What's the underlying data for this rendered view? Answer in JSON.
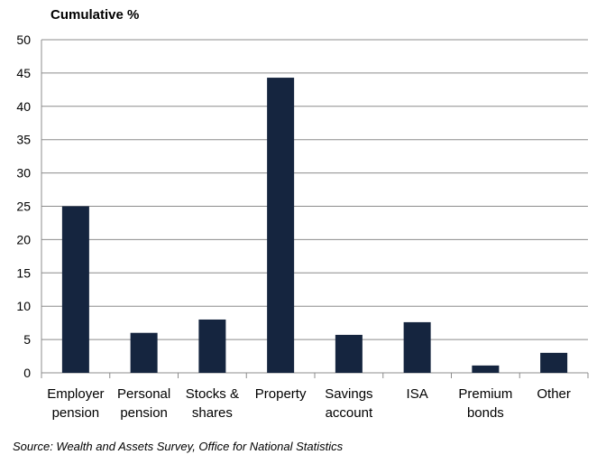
{
  "chart_data": {
    "type": "bar",
    "title": "",
    "ylabel": "Cumulative %",
    "xlabel": "",
    "categories": [
      [
        "Employer",
        "pension"
      ],
      [
        "Personal",
        "pension"
      ],
      [
        "Stocks &",
        "shares"
      ],
      [
        "Property"
      ],
      [
        "Savings",
        "account"
      ],
      [
        "ISA"
      ],
      [
        "Premium",
        "bonds"
      ],
      [
        "Other"
      ]
    ],
    "values": [
      25,
      6,
      8,
      44.3,
      5.7,
      7.6,
      1.1,
      3
    ],
    "ylim": [
      0,
      50
    ],
    "yticks": [
      0,
      5,
      10,
      15,
      20,
      25,
      30,
      35,
      40,
      45,
      50
    ],
    "grid": true,
    "bar_color": "#15253f",
    "source": "Source: Wealth and Assets Survey, Office for National Statistics"
  }
}
